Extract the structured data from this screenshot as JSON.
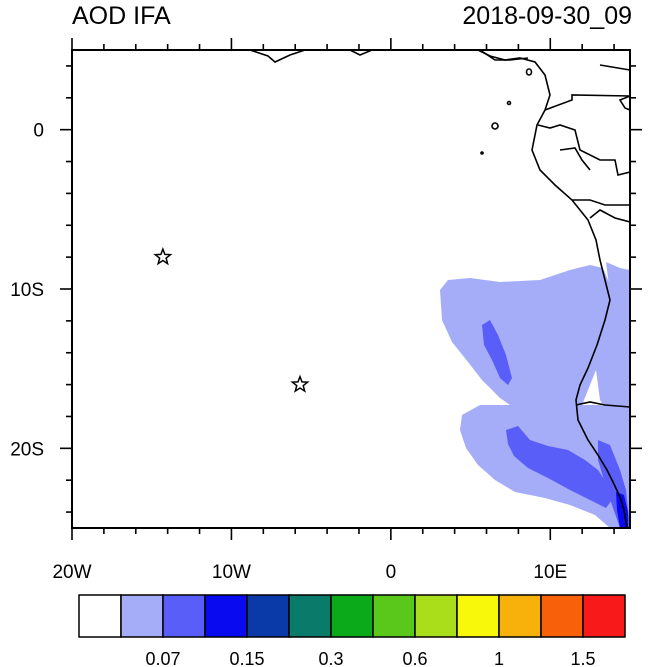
{
  "title_left": "AOD IFA",
  "title_right": "2018-09-30_09",
  "map": {
    "lon_range": [
      -20,
      15
    ],
    "lat_range": [
      -25,
      5
    ],
    "x_ticks": [
      {
        "lon": -20,
        "label": "20W"
      },
      {
        "lon": -10,
        "label": "10W"
      },
      {
        "lon": 0,
        "label": "0"
      },
      {
        "lon": 10,
        "label": "10E"
      }
    ],
    "y_ticks": [
      {
        "lat": 0,
        "label": "0"
      },
      {
        "lat": -10,
        "label": "10S"
      },
      {
        "lat": -20,
        "label": "20S"
      }
    ],
    "markers": [
      {
        "type": "star-icon",
        "lon": -14.3,
        "lat": -8.0
      },
      {
        "type": "star-icon",
        "lon": -5.7,
        "lat": -16.0
      }
    ]
  },
  "colorbar": {
    "colors": [
      "#ffffff",
      "#a5adf8",
      "#5a5ef8",
      "#0a0af0",
      "#0a3aa8",
      "#0a7a6a",
      "#0aaa1a",
      "#5ac81a",
      "#aade1a",
      "#f8f80a",
      "#f8b00a",
      "#f8600a",
      "#f81a1a"
    ],
    "labels": [
      "0.07",
      "0.15",
      "0.3",
      "0.6",
      "1",
      "1.5"
    ]
  }
}
